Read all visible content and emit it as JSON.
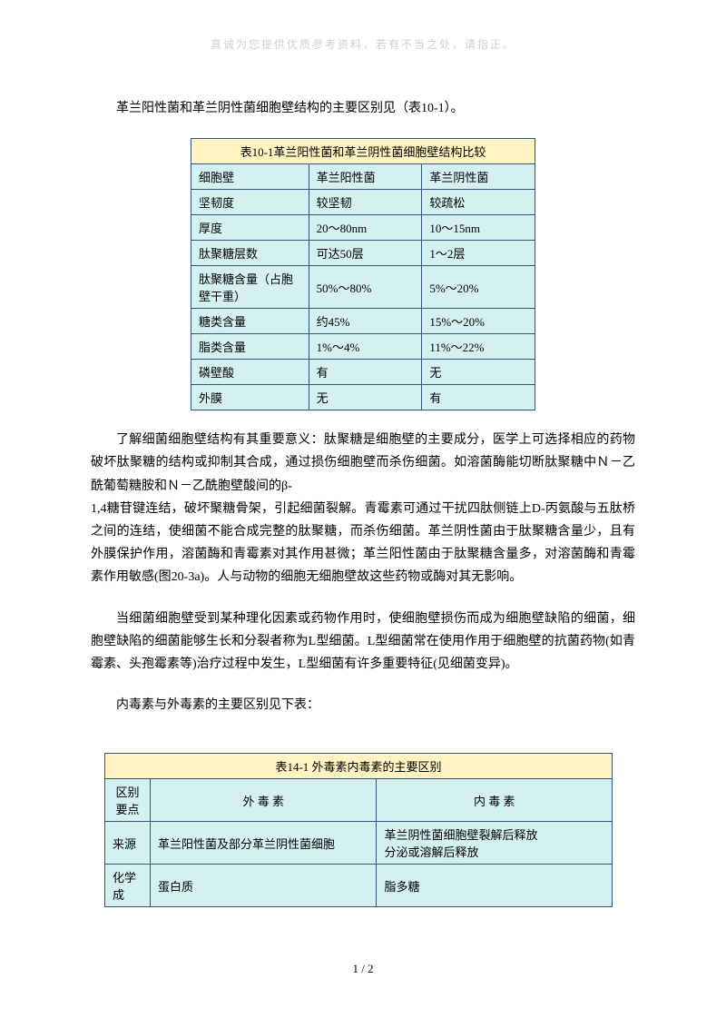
{
  "watermark": "真诚为您提供优质参考资料，若有不当之处，请指正。",
  "intro": "革兰阳性菌和革兰阴性菌细胞壁结构的主要区别见（表10-1）。",
  "table1": {
    "caption": "表10-1革兰阳性菌和革兰阴性菌细胞壁结构比较",
    "headers": [
      "细胞壁",
      "革兰阳性菌",
      "革兰阴性菌"
    ],
    "rows": [
      [
        "坚韧度",
        "较坚韧",
        "较疏松"
      ],
      [
        "厚度",
        "20～80nm",
        "10～15nm"
      ],
      [
        "肽聚糖层数",
        "可达50层",
        "1～2层"
      ],
      [
        "肽聚糖含量（占胞壁干重）",
        "50%～80%",
        "5%～20%"
      ],
      [
        "糖类含量",
        "约45%",
        "15%～20%"
      ],
      [
        "脂类含量",
        "1%～4%",
        "11%～22%"
      ],
      [
        "磷壁酸",
        "有",
        "无"
      ],
      [
        "外膜",
        "无",
        "有"
      ]
    ]
  },
  "para1": "了解细菌细胞壁结构有其重要意义：肽聚糖是细胞壁的主要成分，医学上可选择相应的药物破坏肽聚糖的结构或抑制其合成，通过损伤细胞壁而杀伤细菌。如溶菌酶能切断肽聚糖中Ｎ－乙酰葡萄糖胺和Ｎ－乙酰胞壁酸间的β-",
  "para1b": "1,4糖苷键连结，破坏聚糖骨架，引起细菌裂解。青霉素可通过干扰四肽侧链上D-丙氨酸与五肽桥之间的连结，使细菌不能合成完整的肽聚糖，而杀伤细菌。革兰阴性菌由于肽聚糖含量少，且有外膜保护作用，溶菌酶和青霉素对其作用甚微；革兰阳性菌由于肽聚糖含量多，对溶菌酶和青霉素作用敏感(图20-3a)。人与动物的细胞无细胞壁故这些药物或酶对其无影响。",
  "para2": "当细菌细胞壁受到某种理化因素或药物作用时，使细胞壁损伤而成为细胞壁缺陷的细菌，细胞壁缺陷的细菌能够生长和分裂者称为L型细菌。L型细菌常在使用作用于细胞壁的抗菌药物(如青霉素、头孢霉素等)治疗过程中发生，L型细菌有许多重要特征(见细菌变异)。",
  "para3": "内毒素与外毒素的主要区别见下表：",
  "table2": {
    "caption": "表14-1 外毒素内毒素的主要区别",
    "headers": [
      "区别要点",
      "外 毒 素",
      "内 毒 素"
    ],
    "rows": [
      [
        "来源",
        "革兰阳性菌及部分革兰阴性菌细胞",
        "革兰阴性菌细胞壁裂解后释放\n分泌或溶解后释放"
      ],
      [
        "化学成",
        "蛋白质",
        "脂多糖"
      ]
    ]
  },
  "footer": "1 / 2"
}
